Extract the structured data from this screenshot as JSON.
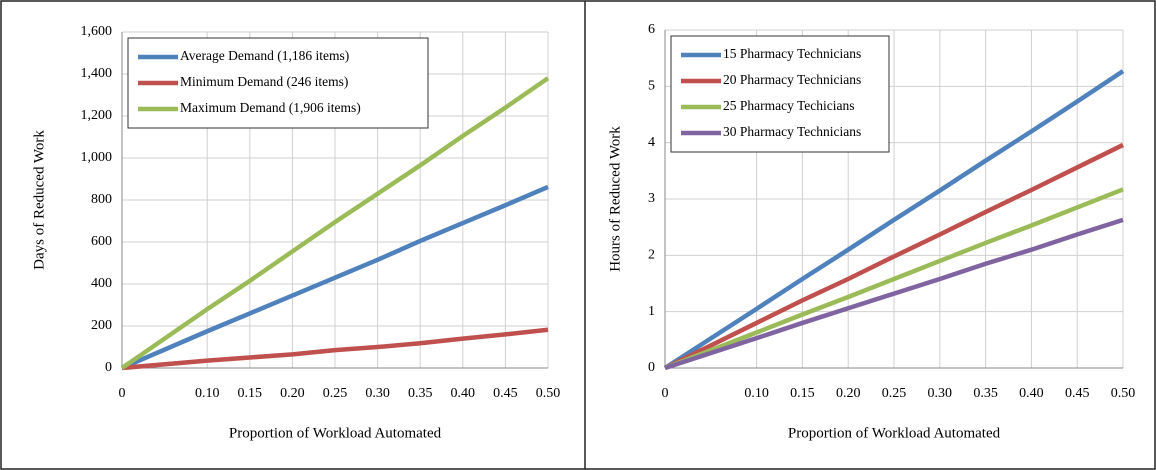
{
  "chart_data": [
    {
      "type": "line",
      "xlabel": "Proportion of Workload Automated",
      "ylabel": "Days of Reduced Work",
      "x": [
        0,
        0.1,
        0.15,
        0.2,
        0.25,
        0.3,
        0.35,
        0.4,
        0.45,
        0.5
      ],
      "series": [
        {
          "name": "Average Demand (1,186 items)",
          "color": "#4f81bd",
          "values": [
            0,
            175,
            260,
            345,
            430,
            515,
            605,
            690,
            775,
            862
          ]
        },
        {
          "name": "Minimum Demand (246 items)",
          "color": "#c0504d",
          "values": [
            0,
            35,
            50,
            65,
            85,
            100,
            118,
            140,
            160,
            182
          ]
        },
        {
          "name": "Maximum Demand (1,906 items)",
          "color": "#9bbb59",
          "values": [
            0,
            280,
            415,
            555,
            695,
            830,
            965,
            1105,
            1240,
            1380
          ]
        }
      ],
      "xlim": [
        0,
        0.5
      ],
      "xticks": [
        0,
        {
          "value": 0.1,
          "label": "0.10"
        },
        0.15,
        {
          "value": 0.2,
          "label": "0.20"
        },
        0.25,
        {
          "value": 0.3,
          "label": "0.30"
        },
        0.35,
        {
          "value": 0.4,
          "label": "0.40"
        },
        0.45,
        {
          "value": 0.5,
          "label": "0.50"
        }
      ],
      "ylim": [
        0,
        1600
      ],
      "yticks": [
        0,
        200,
        400,
        600,
        800,
        {
          "value": 1000,
          "label": "1,000"
        },
        {
          "value": 1200,
          "label": "1,200"
        },
        {
          "value": 1400,
          "label": "1,400"
        },
        {
          "value": 1600,
          "label": "1,600"
        }
      ],
      "grid": true,
      "legend": "upper left"
    },
    {
      "type": "line",
      "xlabel": "Proportion of Workload Automated",
      "ylabel": "Hours of Reduced Work",
      "x": [
        0,
        0.1,
        0.15,
        0.2,
        0.25,
        0.3,
        0.35,
        0.4,
        0.45,
        0.5
      ],
      "series": [
        {
          "name": "15 Pharmacy Technicians",
          "color": "#4f81bd",
          "values": [
            0,
            1.05,
            1.58,
            2.1,
            2.63,
            3.15,
            3.68,
            4.2,
            4.73,
            5.27
          ]
        },
        {
          "name": "20 Pharmacy Technicians",
          "color": "#c0504d",
          "values": [
            0,
            0.8,
            1.2,
            1.58,
            1.98,
            2.37,
            2.77,
            3.16,
            3.56,
            3.96
          ]
        },
        {
          "name": "25 Pharmacy Techicians",
          "color": "#9bbb59",
          "values": [
            0,
            0.63,
            0.95,
            1.26,
            1.58,
            1.9,
            2.22,
            2.53,
            2.85,
            3.17
          ]
        },
        {
          "name": "30 Pharmacy Technicians",
          "color": "#8064a2",
          "values": [
            0,
            0.53,
            0.8,
            1.06,
            1.32,
            1.58,
            1.85,
            2.1,
            2.37,
            2.63
          ]
        }
      ],
      "xlim": [
        0,
        0.5
      ],
      "xticks": [
        0,
        {
          "value": 0.1,
          "label": "0.10"
        },
        0.15,
        {
          "value": 0.2,
          "label": "0.20"
        },
        0.25,
        {
          "value": 0.3,
          "label": "0.30"
        },
        0.35,
        {
          "value": 0.4,
          "label": "0.40"
        },
        0.45,
        {
          "value": 0.5,
          "label": "0.50"
        }
      ],
      "ylim": [
        0,
        6
      ],
      "yticks": [
        0,
        1,
        2,
        3,
        4,
        5,
        6
      ],
      "grid": true,
      "legend": "upper left"
    }
  ]
}
